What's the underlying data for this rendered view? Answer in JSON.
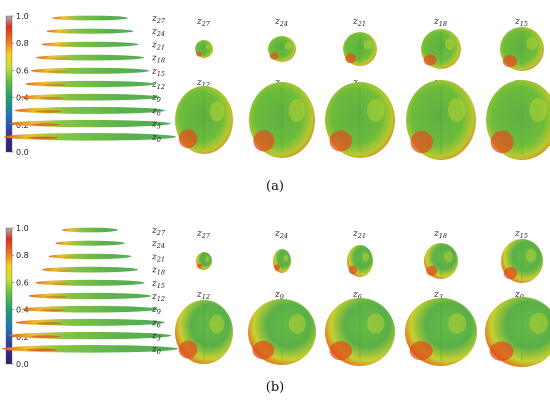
{
  "colorbar": {
    "ticks": [
      "1.0",
      "0.8",
      "0.6",
      "0.4",
      "0.2",
      "0.0"
    ],
    "colors": [
      "#b0b0b0",
      "#d8301e",
      "#f07020",
      "#f5d020",
      "#c8e030",
      "#60c040",
      "#20a070",
      "#2070c0",
      "#3030a0",
      "#3a1a6a"
    ]
  },
  "stack_labels": [
    "27",
    "24",
    "21",
    "18",
    "15",
    "12",
    "9",
    "6",
    "3",
    "0"
  ],
  "grid_top_row": [
    "27",
    "24",
    "21",
    "18",
    "15"
  ],
  "grid_bottom_row": [
    "12",
    "9",
    "6",
    "3",
    "0"
  ],
  "panels": [
    {
      "caption": "(a)"
    },
    {
      "caption": "(b)"
    }
  ],
  "slice_colors": {
    "base": "#60b840",
    "hot": "#f0a020",
    "edge": "#d83018",
    "cool": "#1fa060"
  }
}
